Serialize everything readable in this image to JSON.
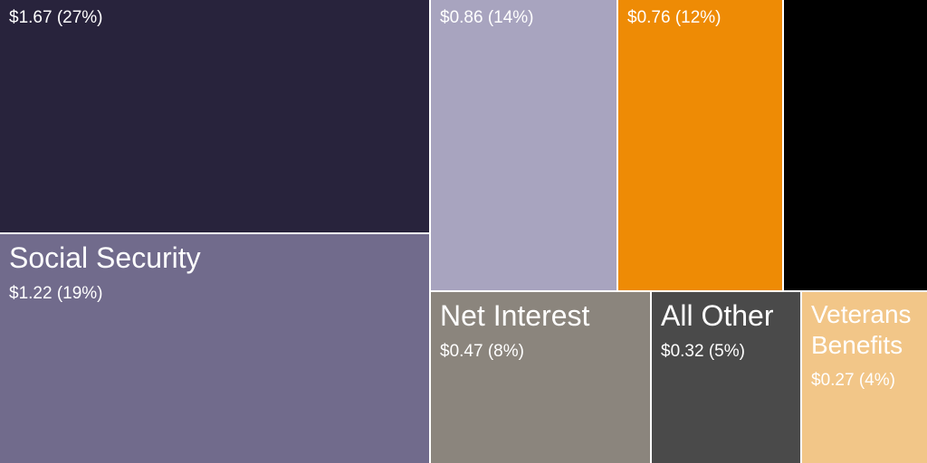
{
  "chart_data": {
    "type": "treemap",
    "tiles": [
      {
        "name": "",
        "value": 1.67,
        "percent": 27,
        "value_label": "$1.67 (27%)",
        "color": "#28233c",
        "text_color": "#ffffff"
      },
      {
        "name": "Social Security",
        "value": 1.22,
        "percent": 19,
        "value_label": "$1.22 (19%)",
        "color": "#716b8c",
        "text_color": "#ffffff"
      },
      {
        "name": "",
        "value": 0.86,
        "percent": 14,
        "value_label": "$0.86 (14%)",
        "color": "#a8a4bf",
        "text_color": "#ffffff"
      },
      {
        "name": "",
        "value": 0.76,
        "percent": 12,
        "value_label": "$0.76 (12%)",
        "color": "#ee8b05",
        "text_color": "#ffffff"
      },
      {
        "name": "",
        "value": null,
        "percent": null,
        "value_label": "",
        "color": "#000000",
        "text_color": "#ffffff"
      },
      {
        "name": "Net Interest",
        "value": 0.47,
        "percent": 8,
        "value_label": "$0.47 (8%)",
        "color": "#8b857d",
        "text_color": "#ffffff"
      },
      {
        "name": "All Other",
        "value": 0.32,
        "percent": 5,
        "value_label": "$0.32 (5%)",
        "color": "#4a4a4a",
        "text_color": "#ffffff"
      },
      {
        "name": "Veterans Benefits",
        "value": 0.27,
        "percent": 4,
        "value_label": "$0.27 (4%)",
        "color": "#f2c688",
        "text_color": "#ffffff"
      }
    ]
  }
}
